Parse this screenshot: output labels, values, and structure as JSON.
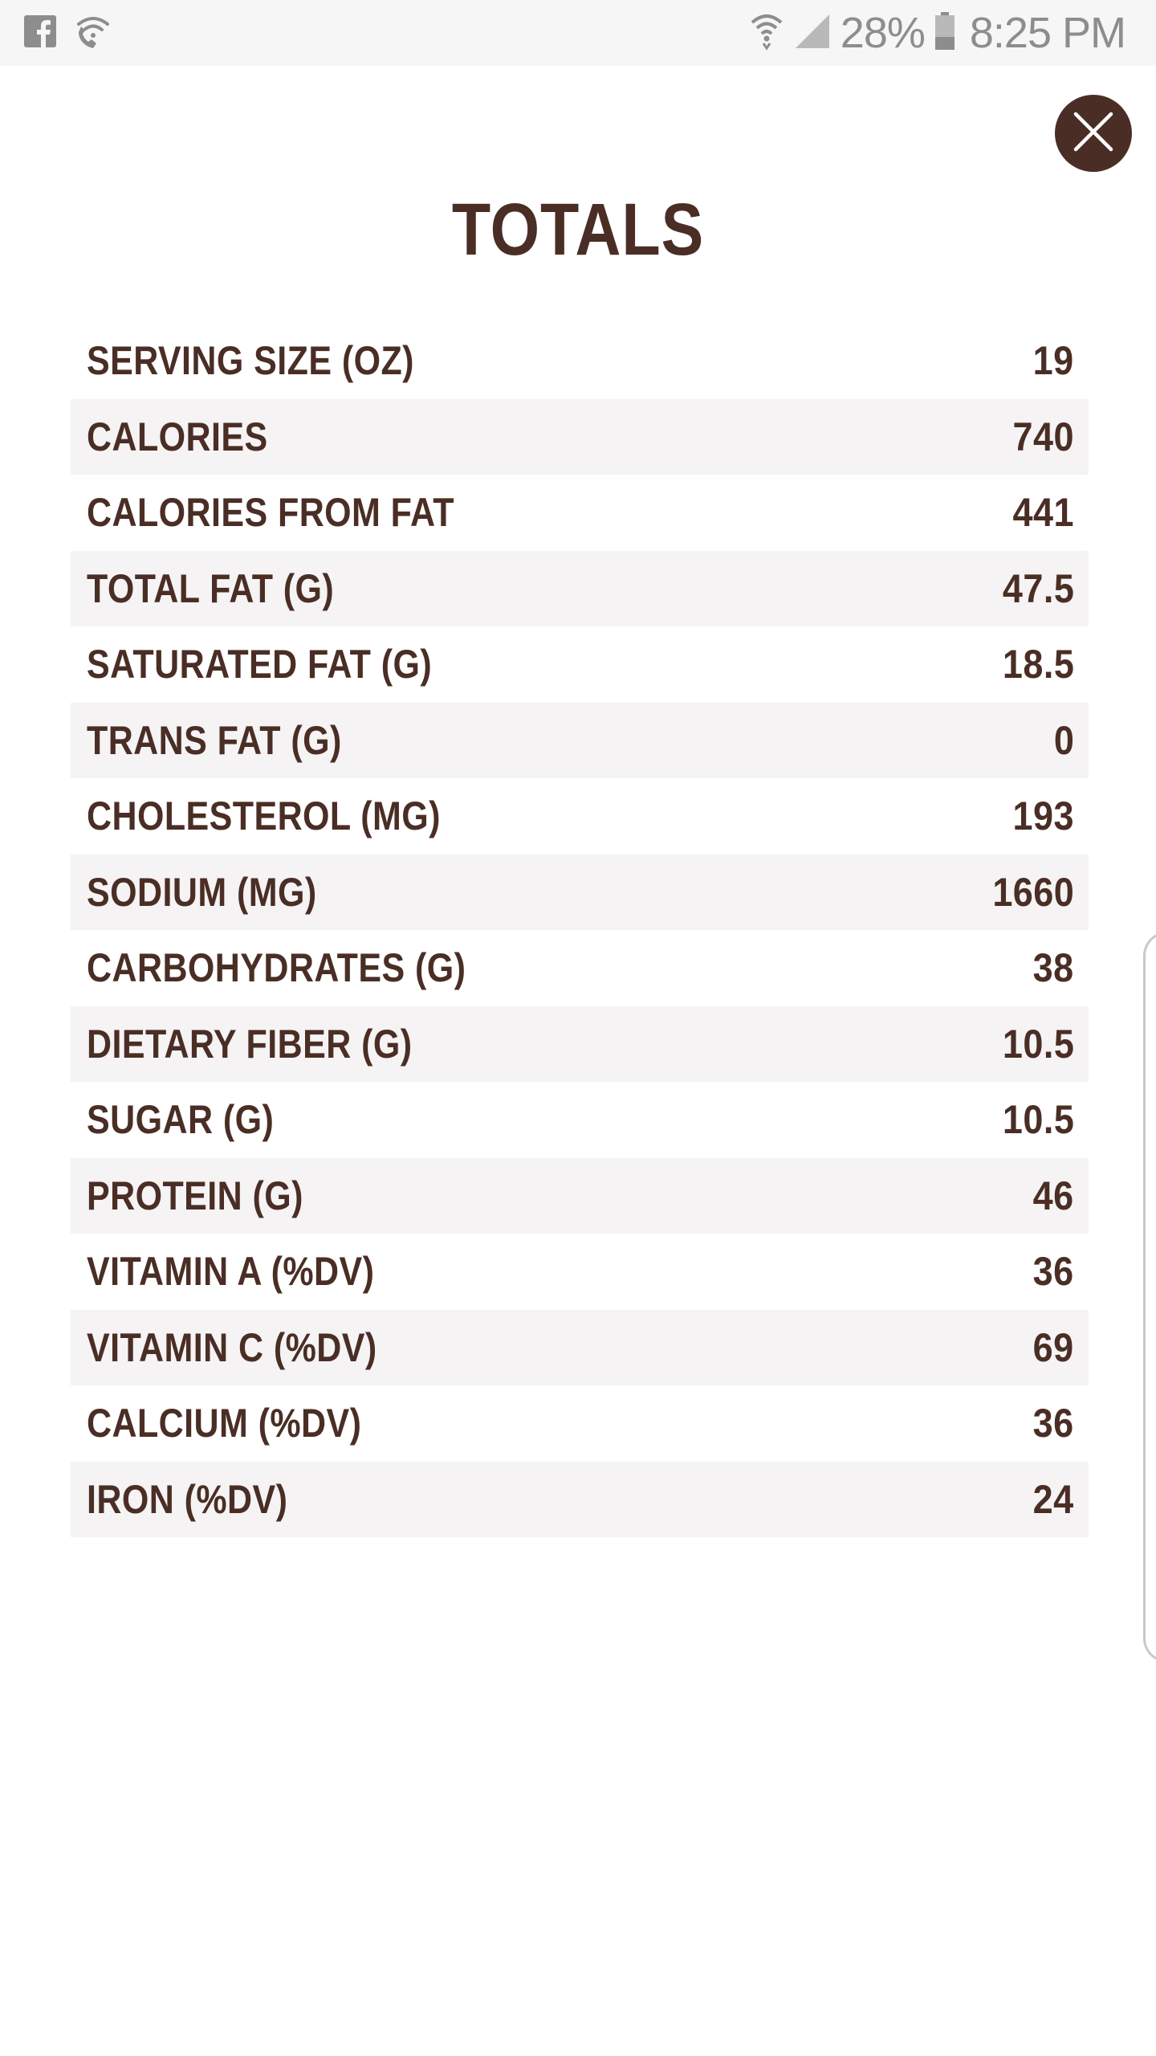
{
  "status_bar": {
    "left_icons": [
      "facebook-icon",
      "wifi-call-icon"
    ],
    "battery_percent": "28%",
    "time": "8:25 PM"
  },
  "title": "TOTALS",
  "close_icon": "close-icon",
  "colors": {
    "brand": "#4a2e25",
    "row_shade": "#f5f3f3",
    "status_text": "#8d8d8d"
  },
  "rows": [
    {
      "label": "SERVING SIZE (OZ)",
      "value": "19"
    },
    {
      "label": "CALORIES",
      "value": "740"
    },
    {
      "label": "CALORIES FROM FAT",
      "value": "441"
    },
    {
      "label": "TOTAL FAT (G)",
      "value": "47.5"
    },
    {
      "label": "SATURATED FAT (G)",
      "value": "18.5"
    },
    {
      "label": "TRANS FAT (G)",
      "value": "0"
    },
    {
      "label": "CHOLESTEROL (MG)",
      "value": "193"
    },
    {
      "label": "SODIUM (MG)",
      "value": "1660"
    },
    {
      "label": "CARBOHYDRATES (G)",
      "value": "38"
    },
    {
      "label": "DIETARY FIBER (G)",
      "value": "10.5"
    },
    {
      "label": "SUGAR (G)",
      "value": "10.5"
    },
    {
      "label": "PROTEIN (G)",
      "value": "46"
    },
    {
      "label": "VITAMIN A (%DV)",
      "value": "36"
    },
    {
      "label": "VITAMIN C (%DV)",
      "value": "69"
    },
    {
      "label": "CALCIUM (%DV)",
      "value": "36"
    },
    {
      "label": "IRON (%DV)",
      "value": "24"
    }
  ]
}
